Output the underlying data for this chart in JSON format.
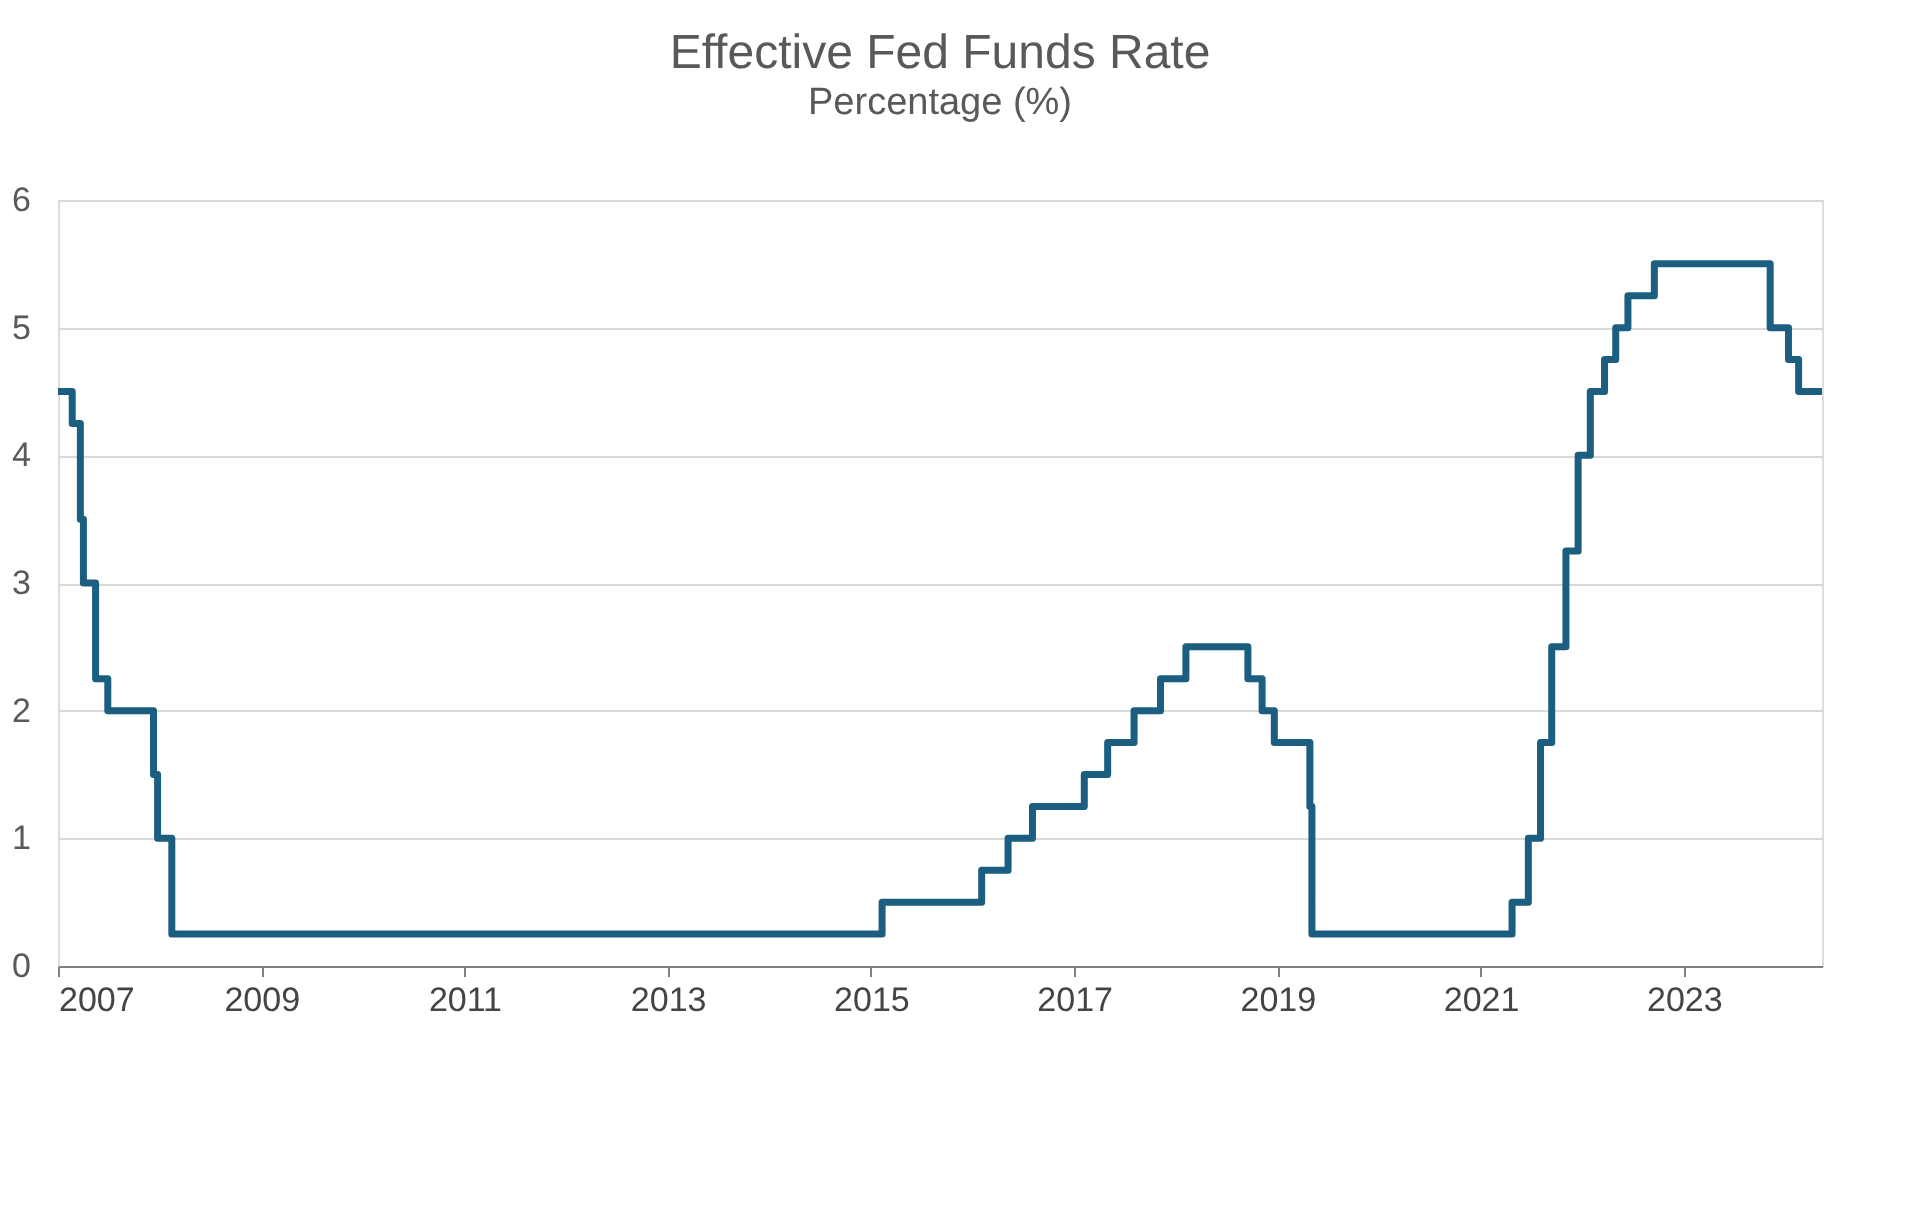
{
  "chart_data": {
    "type": "step",
    "title": "Effective Fed Funds Rate",
    "subtitle": "Percentage (%)",
    "x": [
      2007.0,
      2007.14,
      2007.22,
      2007.25,
      2007.37,
      2007.49,
      2007.94,
      2007.98,
      2008.12,
      2015.11,
      2016.09,
      2016.35,
      2016.59,
      2017.1,
      2017.33,
      2017.59,
      2017.85,
      2018.1,
      2018.71,
      2018.85,
      2018.97,
      2019.32,
      2019.34,
      2021.31,
      2021.47,
      2021.59,
      2021.7,
      2021.84,
      2021.96,
      2022.08,
      2022.22,
      2022.33,
      2022.45,
      2022.71,
      2023.85,
      2024.03,
      2024.13,
      2024.36
    ],
    "series": [
      {
        "color": "#1b5e80",
        "values": [
          4.5,
          4.25,
          3.5,
          3.0,
          2.25,
          2.0,
          1.5,
          1.0,
          0.25,
          0.5,
          0.75,
          1.0,
          1.25,
          1.5,
          1.75,
          2.0,
          2.25,
          2.5,
          2.25,
          2.0,
          1.75,
          1.25,
          0.25,
          0.5,
          1.0,
          1.75,
          2.5,
          3.25,
          4.0,
          4.5,
          4.75,
          5.0,
          5.25,
          5.5,
          5.0,
          4.75,
          4.5,
          4.5
        ]
      }
    ],
    "xlim": [
      2007,
      2024.36
    ],
    "xticks": [
      2007,
      2009,
      2011,
      2013,
      2015,
      2017,
      2019,
      2021,
      2023
    ],
    "ylim": [
      0,
      6
    ],
    "yticks": [
      0,
      1,
      2,
      3,
      4,
      5,
      6
    ],
    "grid": "y",
    "marker": "none",
    "line_style": "solid"
  }
}
